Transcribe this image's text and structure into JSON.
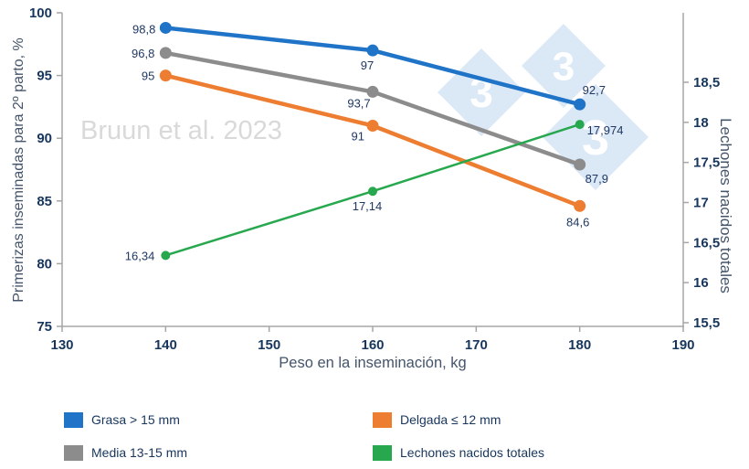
{
  "chart_data": {
    "type": "line",
    "watermark_text": "Bruun et al. 2023",
    "watermark_logo": "333",
    "xlabel": "Peso en la inseminación, kg",
    "ylabel_left": "Primerizas inseminadas para 2º parto, %",
    "ylabel_right": "Lechones nacidos totales",
    "x": [
      140,
      160,
      180
    ],
    "xlim": [
      130,
      190
    ],
    "x_ticks": [
      "130",
      "140",
      "150",
      "160",
      "170",
      "180",
      "190"
    ],
    "left_lim": [
      75,
      100
    ],
    "left_ticks": [
      "75",
      "80",
      "85",
      "90",
      "95",
      "100"
    ],
    "right_lim": [
      15.5,
      18.5
    ],
    "right_ticks": [
      "15,5",
      "16",
      "16,5",
      "17",
      "17,5",
      "18",
      "18,5"
    ],
    "grid": false,
    "legend_position": "bottom",
    "series": [
      {
        "name": "Grasa > 15 mm",
        "axis": "left",
        "color": "#1F74C8",
        "values": [
          98.8,
          97,
          92.7
        ],
        "point_labels": [
          "98,8",
          "97",
          "92,7"
        ]
      },
      {
        "name": "Media 13-15 mm",
        "axis": "left",
        "color": "#8C8C8C",
        "values": [
          96.8,
          93.7,
          87.9
        ],
        "point_labels": [
          "96,8",
          "93,7",
          "87,9"
        ]
      },
      {
        "name": "Delgada ≤ 12 mm",
        "axis": "left",
        "color": "#ED7D31",
        "values": [
          95,
          91,
          84.6
        ],
        "point_labels": [
          "95",
          "91",
          "84,6"
        ]
      },
      {
        "name": "Lechones nacidos totales",
        "axis": "right",
        "color": "#28A84E",
        "values": [
          16.34,
          17.14,
          17.974
        ],
        "point_labels": [
          "16,34",
          "17,14",
          "17,974"
        ]
      }
    ]
  }
}
